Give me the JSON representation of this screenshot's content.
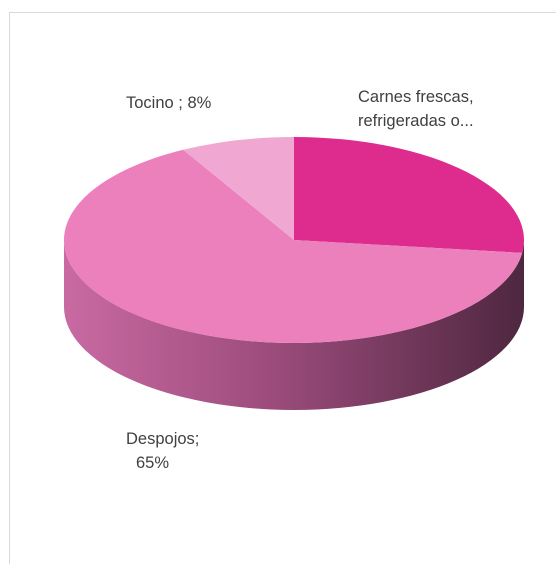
{
  "chart_data": {
    "type": "pie",
    "title": "",
    "slices": [
      {
        "label": "Carnes frescas, refrigeradas o...",
        "value": 27,
        "color": "#dd2c8e",
        "label_lines": [
          "Carnes frescas,",
          "refrigeradas o..."
        ]
      },
      {
        "label": "Despojos",
        "value": 65,
        "color": "#ec80bc",
        "label_lines": [
          "Despojos;",
          "65%"
        ]
      },
      {
        "label": "Tocino",
        "value": 8,
        "color": "#f0a8d2",
        "label_lines": [
          "Tocino ; 8%"
        ]
      }
    ],
    "legend": "none",
    "style": "3d",
    "side_colors": {
      "shade_light": "#c96aa3",
      "shade_mid": "#9c4c7c",
      "shade_dark": "#4e2740"
    }
  }
}
